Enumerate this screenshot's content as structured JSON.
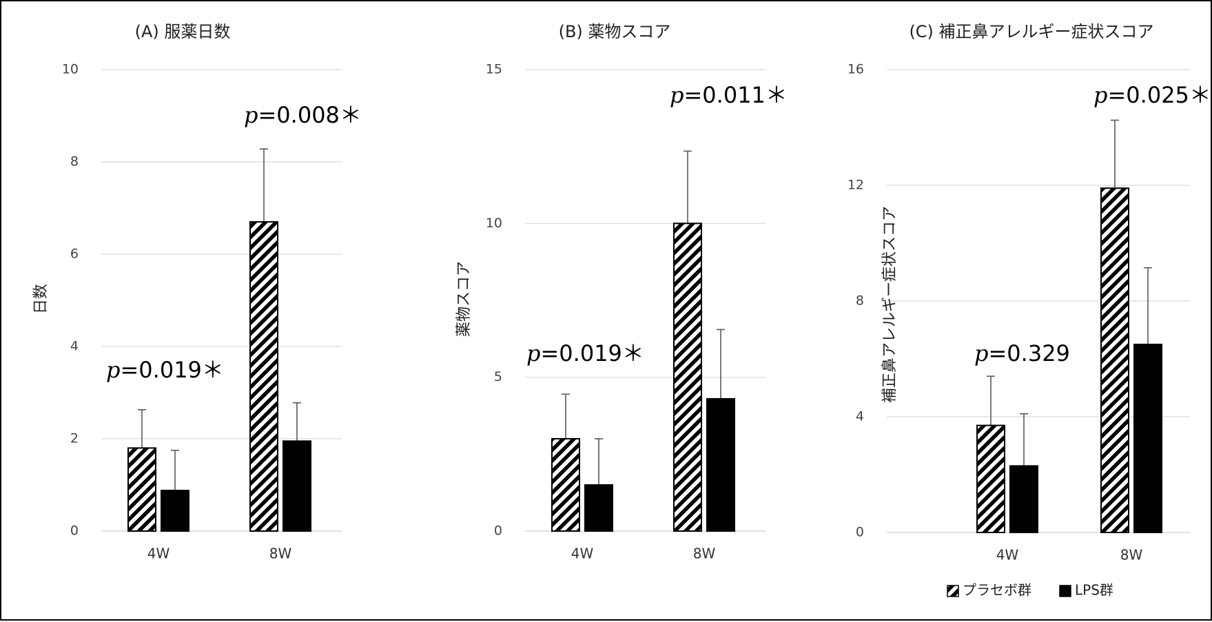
{
  "chart_data": [
    {
      "type": "bar",
      "title": "(A) 服薬日数",
      "ylabel": "日数",
      "xlabel": "",
      "categories": [
        "4W",
        "8W"
      ],
      "ylim": [
        0,
        10
      ],
      "yticks": [
        "0",
        "2",
        "4",
        "6",
        "8",
        "10"
      ],
      "grid": true,
      "series": [
        {
          "name": "プラセボ群",
          "values": [
            1.8,
            6.7
          ],
          "errors": [
            0.83,
            1.58
          ]
        },
        {
          "name": "LPS群",
          "values": [
            0.88,
            1.95
          ],
          "errors": [
            0.87,
            0.83
          ]
        }
      ],
      "annotations": [
        {
          "category": "4W",
          "p_symbol": "p",
          "text": "=0.019＊"
        },
        {
          "category": "8W",
          "p_symbol": "p",
          "text": "=0.008＊"
        }
      ]
    },
    {
      "type": "bar",
      "title": "(B) 薬物スコア",
      "ylabel": "薬物スコア",
      "xlabel": "",
      "categories": [
        "4W",
        "8W"
      ],
      "ylim": [
        0,
        15
      ],
      "yticks": [
        "0",
        "5",
        "10",
        "15"
      ],
      "grid": true,
      "series": [
        {
          "name": "プラセボ群",
          "values": [
            3.0,
            10.0
          ],
          "errors": [
            1.45,
            2.35
          ]
        },
        {
          "name": "LPS群",
          "values": [
            1.5,
            4.3
          ],
          "errors": [
            1.5,
            2.25
          ]
        }
      ],
      "annotations": [
        {
          "category": "4W",
          "p_symbol": "p",
          "text": "=0.019＊"
        },
        {
          "category": "8W",
          "p_symbol": "p",
          "text": "=0.011＊"
        }
      ]
    },
    {
      "type": "bar",
      "title": "(C) 補正鼻アレルギー症状スコア",
      "ylabel": "補正鼻アレルギー症状スコア",
      "xlabel": "",
      "categories": [
        "4W",
        "8W"
      ],
      "ylim": [
        0,
        16
      ],
      "yticks": [
        "0",
        "4",
        "8",
        "12",
        "16"
      ],
      "grid": true,
      "series": [
        {
          "name": "プラセボ群",
          "values": [
            3.7,
            11.9
          ],
          "errors": [
            1.7,
            2.35
          ]
        },
        {
          "name": "LPS群",
          "values": [
            2.3,
            6.5
          ],
          "errors": [
            1.8,
            2.65
          ]
        }
      ],
      "annotations": [
        {
          "category": "4W",
          "p_symbol": "p",
          "text": "=0.329"
        },
        {
          "category": "8W",
          "p_symbol": "p",
          "text": "=0.025＊"
        }
      ]
    }
  ],
  "legend": {
    "placement": "bottom-right",
    "items": [
      {
        "name": "プラセボ群",
        "fill": "hatched"
      },
      {
        "name": "LPS群",
        "fill": "solid"
      }
    ]
  },
  "colors": {
    "grid": "#d9d9d9",
    "bar": "#000000",
    "error": "#595959",
    "text": "#222222"
  }
}
